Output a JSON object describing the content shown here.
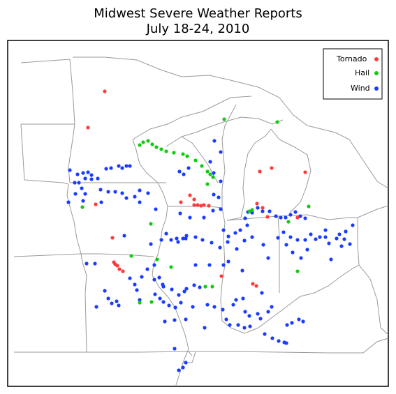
{
  "title_line1": "Midwest Severe Weather Reports",
  "title_line2": "July 18-24, 2010",
  "legend": [
    {
      "label": "Tornado",
      "color": "#ff3a3a"
    },
    {
      "label": "Hail",
      "color": "#11cc11"
    },
    {
      "label": "Wind",
      "color": "#1a3cff"
    }
  ],
  "reports": {
    "tornado": [
      [
        150,
        131
      ],
      [
        126,
        183
      ],
      [
        137,
        293
      ],
      [
        161,
        341
      ],
      [
        163,
        376
      ],
      [
        168,
        381
      ],
      [
        171,
        386
      ],
      [
        176,
        389
      ],
      [
        165,
        379
      ],
      [
        259,
        290
      ],
      [
        272,
        280
      ],
      [
        278,
        294
      ],
      [
        283,
        294
      ],
      [
        288,
        295
      ],
      [
        292,
        294
      ],
      [
        299,
        295
      ],
      [
        278,
        286
      ],
      [
        372,
        246
      ],
      [
        389,
        241
      ],
      [
        437,
        247
      ],
      [
        368,
        292
      ],
      [
        376,
        298
      ],
      [
        383,
        311
      ],
      [
        426,
        312
      ],
      [
        317,
        396
      ],
      [
        362,
        407
      ],
      [
        367,
        410
      ]
    ],
    "hail": [
      [
        321,
        171
      ],
      [
        397,
        175
      ],
      [
        200,
        208
      ],
      [
        205,
        204
      ],
      [
        212,
        202
      ],
      [
        218,
        207
      ],
      [
        224,
        211
      ],
      [
        231,
        214
      ],
      [
        238,
        217
      ],
      [
        249,
        219
      ],
      [
        262,
        221
      ],
      [
        268,
        224
      ],
      [
        280,
        230
      ],
      [
        289,
        238
      ],
      [
        297,
        246
      ],
      [
        301,
        250
      ],
      [
        305,
        254
      ],
      [
        297,
        264
      ],
      [
        118,
        297
      ],
      [
        216,
        321
      ],
      [
        188,
        367
      ],
      [
        225,
        372
      ],
      [
        245,
        383
      ],
      [
        294,
        411
      ],
      [
        304,
        411
      ],
      [
        200,
        434
      ],
      [
        217,
        433
      ],
      [
        357,
        303
      ],
      [
        361,
        301
      ],
      [
        442,
        296
      ],
      [
        413,
        318
      ],
      [
        426,
        389
      ]
    ],
    "wind": [
      [
        152,
        242
      ],
      [
        159,
        241
      ],
      [
        170,
        238
      ],
      [
        175,
        241
      ],
      [
        181,
        238
      ],
      [
        186,
        238
      ],
      [
        100,
        244
      ],
      [
        111,
        250
      ],
      [
        119,
        248
      ],
      [
        126,
        247
      ],
      [
        131,
        251
      ],
      [
        122,
        256
      ],
      [
        131,
        257
      ],
      [
        140,
        256
      ],
      [
        107,
        262
      ],
      [
        113,
        262
      ],
      [
        117,
        270
      ],
      [
        108,
        278
      ],
      [
        122,
        278
      ],
      [
        98,
        290
      ],
      [
        119,
        288
      ],
      [
        144,
        272
      ],
      [
        155,
        275
      ],
      [
        165,
        275
      ],
      [
        175,
        277
      ],
      [
        181,
        284
      ],
      [
        193,
        282
      ],
      [
        200,
        273
      ],
      [
        212,
        277
      ],
      [
        257,
        246
      ],
      [
        263,
        250
      ],
      [
        270,
        241
      ],
      [
        316,
        218
      ],
      [
        307,
        202
      ],
      [
        301,
        232
      ],
      [
        306,
        248
      ],
      [
        316,
        260
      ],
      [
        306,
        279
      ],
      [
        313,
        283
      ],
      [
        316,
        300
      ],
      [
        305,
        302
      ],
      [
        258,
        306
      ],
      [
        272,
        312
      ],
      [
        292,
        312
      ],
      [
        238,
        335
      ],
      [
        253,
        342
      ],
      [
        266,
        342
      ],
      [
        280,
        340
      ],
      [
        290,
        344
      ],
      [
        303,
        348
      ],
      [
        245,
        344
      ],
      [
        255,
        347
      ],
      [
        262,
        342
      ],
      [
        178,
        338
      ],
      [
        231,
        344
      ],
      [
        320,
        330
      ],
      [
        327,
        339
      ],
      [
        337,
        334
      ],
      [
        344,
        330
      ],
      [
        354,
        323
      ],
      [
        351,
        313
      ],
      [
        355,
        304
      ],
      [
        361,
        305
      ],
      [
        369,
        298
      ],
      [
        376,
        303
      ],
      [
        386,
        303
      ],
      [
        395,
        310
      ],
      [
        402,
        312
      ],
      [
        409,
        312
      ],
      [
        416,
        308
      ],
      [
        423,
        304
      ],
      [
        430,
        310
      ],
      [
        437,
        313
      ],
      [
        350,
        345
      ],
      [
        361,
        340
      ],
      [
        377,
        351
      ],
      [
        326,
        347
      ],
      [
        339,
        357
      ],
      [
        315,
        355
      ],
      [
        320,
        380
      ],
      [
        327,
        375
      ],
      [
        406,
        333
      ],
      [
        416,
        340
      ],
      [
        426,
        344
      ],
      [
        437,
        344
      ],
      [
        445,
        336
      ],
      [
        452,
        343
      ],
      [
        466,
        340
      ],
      [
        471,
        349
      ],
      [
        486,
        336
      ],
      [
        495,
        332
      ],
      [
        505,
        323
      ],
      [
        501,
        350
      ],
      [
        493,
        343
      ],
      [
        482,
        342
      ],
      [
        489,
        353
      ],
      [
        466,
        330
      ],
      [
        458,
        340
      ],
      [
        398,
        341
      ],
      [
        410,
        351
      ],
      [
        419,
        362
      ],
      [
        431,
        370
      ],
      [
        124,
        378
      ],
      [
        150,
        417
      ],
      [
        155,
        428
      ],
      [
        160,
        435
      ],
      [
        167,
        432
      ],
      [
        170,
        438
      ],
      [
        186,
        399
      ],
      [
        193,
        408
      ],
      [
        196,
        416
      ],
      [
        203,
        397
      ],
      [
        211,
        386
      ],
      [
        221,
        380
      ],
      [
        228,
        398
      ],
      [
        233,
        408
      ],
      [
        234,
        411
      ],
      [
        246,
        415
      ],
      [
        256,
        423
      ],
      [
        264,
        418
      ],
      [
        267,
        414
      ],
      [
        278,
        409
      ],
      [
        286,
        412
      ],
      [
        222,
        422
      ],
      [
        229,
        428
      ],
      [
        234,
        433
      ],
      [
        242,
        438
      ],
      [
        251,
        441
      ],
      [
        259,
        434
      ],
      [
        276,
        440
      ],
      [
        236,
        461
      ],
      [
        250,
        459
      ],
      [
        266,
        458
      ],
      [
        297,
        437
      ],
      [
        307,
        440
      ],
      [
        319,
        444
      ],
      [
        334,
        437
      ],
      [
        338,
        430
      ],
      [
        348,
        428
      ],
      [
        351,
        447
      ],
      [
        357,
        453
      ],
      [
        369,
        450
      ],
      [
        384,
        447
      ],
      [
        389,
        440
      ],
      [
        324,
        458
      ],
      [
        329,
        466
      ],
      [
        341,
        466
      ],
      [
        350,
        470
      ],
      [
        358,
        468
      ],
      [
        373,
        457
      ],
      [
        379,
        479
      ],
      [
        390,
        485
      ],
      [
        399,
        489
      ],
      [
        407,
        491
      ],
      [
        411,
        466
      ],
      [
        418,
        463
      ],
      [
        428,
        458
      ],
      [
        434,
        461
      ],
      [
        410,
        492
      ],
      [
        256,
        531
      ],
      [
        262,
        527
      ],
      [
        266,
        520
      ],
      [
        136,
        378
      ],
      [
        221,
        401
      ],
      [
        250,
        500
      ],
      [
        293,
        470
      ],
      [
        375,
        420
      ],
      [
        280,
        380
      ],
      [
        200,
        430
      ],
      [
        138,
        440
      ],
      [
        145,
        290
      ],
      [
        200,
        290
      ],
      [
        223,
        300
      ],
      [
        216,
        350
      ],
      [
        267,
        338
      ],
      [
        300,
        380
      ],
      [
        347,
        388
      ],
      [
        384,
        370
      ],
      [
        440,
        358
      ],
      [
        474,
        372
      ]
    ]
  }
}
